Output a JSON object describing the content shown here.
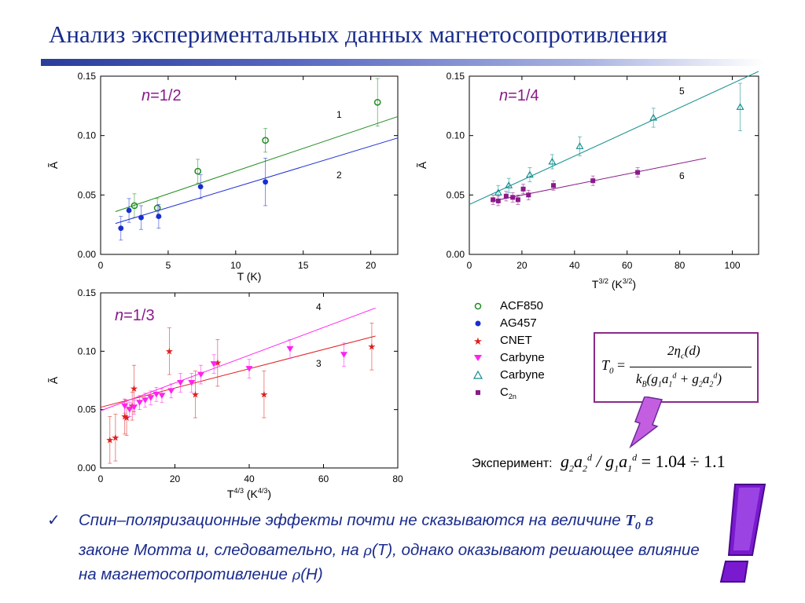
{
  "title": "Анализ экспериментальных данных магнетосопротивления",
  "chart_data": [
    {
      "type": "scatter",
      "label_n": "1/2",
      "xlabel": "T (K)",
      "ylabel": "Ã",
      "xlim": [
        0,
        22
      ],
      "ylim": [
        0,
        0.15
      ],
      "x_ticks": [
        0,
        5,
        10,
        15,
        20
      ],
      "y_ticks": [
        "0.00",
        "0.05",
        "0.10",
        "0.15"
      ],
      "series": [
        {
          "name": "1",
          "marker": "open-circle",
          "color": "#1e8c1e",
          "points": [
            [
              2.5,
              0.041
            ],
            [
              4.2,
              0.039
            ],
            [
              7.2,
              0.07
            ],
            [
              12.2,
              0.096
            ],
            [
              20.5,
              0.128
            ]
          ],
          "errors": [
            0.01,
            0.008,
            0.01,
            0.01,
            0.02
          ],
          "fit": [
            [
              1.1,
              0.036
            ],
            [
              22,
              0.116
            ]
          ]
        },
        {
          "name": "2",
          "marker": "filled-circle",
          "color": "#1a2ed0",
          "points": [
            [
              1.5,
              0.022
            ],
            [
              2.1,
              0.037
            ],
            [
              3.0,
              0.031
            ],
            [
              4.3,
              0.032
            ],
            [
              7.4,
              0.057
            ],
            [
              12.2,
              0.061
            ]
          ],
          "errors": [
            0.01,
            0.01,
            0.01,
            0.01,
            0.01,
            0.02
          ],
          "fit": [
            [
              1.1,
              0.026
            ],
            [
              22,
              0.098
            ]
          ]
        }
      ]
    },
    {
      "type": "scatter",
      "label_n": "1/4",
      "xlabel": "T3/2 (K3/2)",
      "ylabel": "Ã",
      "xlim": [
        0,
        110
      ],
      "ylim": [
        0,
        0.15
      ],
      "x_ticks": [
        0,
        20,
        40,
        60,
        80,
        100
      ],
      "y_ticks": [
        "0.00",
        "0.05",
        "0.10",
        "0.15"
      ],
      "series": [
        {
          "name": "5",
          "marker": "open-triangle",
          "color": "#0e8c8c",
          "points": [
            [
              11,
              0.052
            ],
            [
              15,
              0.058
            ],
            [
              23,
              0.067
            ],
            [
              31.5,
              0.078
            ],
            [
              42,
              0.091
            ],
            [
              70,
              0.115
            ],
            [
              103,
              0.124
            ]
          ],
          "errors": [
            0.006,
            0.006,
            0.006,
            0.006,
            0.008,
            0.008,
            0.02
          ],
          "fit": [
            [
              0,
              0.042
            ],
            [
              110,
              0.154
            ]
          ]
        },
        {
          "name": "6",
          "marker": "filled-square",
          "color": "#8a1a8a",
          "points": [
            [
              9,
              0.046
            ],
            [
              11,
              0.045
            ],
            [
              14,
              0.049
            ],
            [
              16.5,
              0.048
            ],
            [
              18.5,
              0.046
            ],
            [
              20.5,
              0.055
            ],
            [
              22.5,
              0.05
            ],
            [
              32,
              0.058
            ],
            [
              47,
              0.062
            ],
            [
              64,
              0.069
            ]
          ],
          "errors": [
            0.004,
            0.004,
            0.004,
            0.004,
            0.004,
            0.004,
            0.004,
            0.004,
            0.004,
            0.004
          ],
          "fit": [
            [
              9,
              0.045
            ],
            [
              90,
              0.081
            ]
          ]
        }
      ]
    },
    {
      "type": "scatter",
      "label_n": "1/3",
      "xlabel": "T4/3 (K4/3)",
      "ylabel": "Ã",
      "xlim": [
        0,
        80
      ],
      "ylim": [
        0,
        0.15
      ],
      "x_ticks": [
        0,
        20,
        40,
        60,
        80
      ],
      "y_ticks": [
        "0.00",
        "0.05",
        "0.10",
        "0.15"
      ],
      "series": [
        {
          "name": "3",
          "marker": "star",
          "color": "#e02020",
          "points": [
            [
              2.5,
              0.024
            ],
            [
              4,
              0.026
            ],
            [
              6.5,
              0.044
            ],
            [
              7,
              0.043
            ],
            [
              8.5,
              0.053
            ],
            [
              9,
              0.068
            ],
            [
              18.5,
              0.1
            ],
            [
              25.5,
              0.063
            ],
            [
              31.5,
              0.09
            ],
            [
              44,
              0.063
            ],
            [
              73,
              0.104
            ]
          ],
          "errors": [
            0.02,
            0.02,
            0.015,
            0.015,
            0.012,
            0.02,
            0.02,
            0.02,
            0.02,
            0.02,
            0.02
          ],
          "fit": [
            [
              0,
              0.052
            ],
            [
              74,
              0.113
            ]
          ]
        },
        {
          "name": "4",
          "marker": "filled-triangle-down",
          "color": "#ff22ee",
          "points": [
            [
              6.5,
              0.053
            ],
            [
              7.8,
              0.05
            ],
            [
              9,
              0.052
            ],
            [
              10.5,
              0.056
            ],
            [
              12,
              0.058
            ],
            [
              13.5,
              0.06
            ],
            [
              15,
              0.063
            ],
            [
              16.5,
              0.062
            ],
            [
              19,
              0.066
            ],
            [
              21.5,
              0.073
            ],
            [
              24.5,
              0.073
            ],
            [
              27,
              0.08
            ],
            [
              30.5,
              0.089
            ],
            [
              40,
              0.085
            ],
            [
              51,
              0.102
            ],
            [
              65.5,
              0.097
            ]
          ],
          "errors": [
            0.006,
            0.006,
            0.006,
            0.006,
            0.006,
            0.006,
            0.006,
            0.006,
            0.006,
            0.008,
            0.008,
            0.008,
            0.008,
            0.008,
            0.008,
            0.01
          ],
          "fit": [
            [
              0,
              0.049
            ],
            [
              74,
              0.137
            ]
          ]
        }
      ]
    }
  ],
  "legend": [
    {
      "label": "ACF850",
      "marker": "open-circle",
      "color": "#1e8c1e"
    },
    {
      "label": "AG457",
      "marker": "filled-circle",
      "color": "#1a2ed0"
    },
    {
      "label": "CNET",
      "marker": "star",
      "color": "#e02020"
    },
    {
      "label": "Carbyne",
      "marker": "filled-triangle-down",
      "color": "#ff22ee"
    },
    {
      "label": "Carbyne",
      "marker": "open-triangle",
      "color": "#0e8c8c"
    },
    {
      "label": "C",
      "sub": "2n",
      "marker": "filled-square",
      "color": "#8a1a8a"
    }
  ],
  "formula": {
    "lhs": "T",
    "lhs_sub": "0",
    "eq": "=",
    "numerator": "2η",
    "numerator_sub": "c",
    "numerator_rest": "(d)",
    "denominator": "k"
  },
  "experiment": {
    "label": "Эксперимент:",
    "result": "= 1.04 ÷ 1.1"
  },
  "bullet": {
    "text_1": "Спин–поляризационные эффекты почти не сказываются на величине ",
    "t0": "T",
    "t0_sub": "0",
    "text_2": " в законе Мотта и, следовательно, на ",
    "rho": "ρ",
    "text_3": "(Т), однако оказывают решающее влияние на магнетосопротивление ",
    "rho2": "ρ",
    "text_4": "(Н)"
  },
  "colors": {
    "title": "#1a2c8c",
    "formula_border": "#8a2a8a",
    "arrow": "#c45ee0",
    "exclaim": "#8a2ac8"
  }
}
